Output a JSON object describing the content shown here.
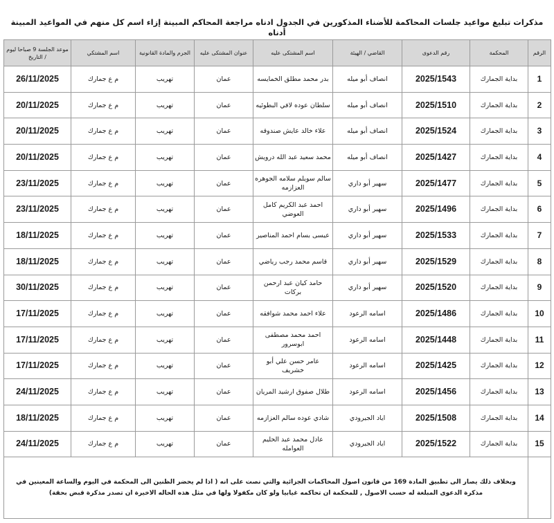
{
  "title": "مذكرات تبليغ مواعيد جلسات المحاكمة للأضناء المذكورين في الجدول ادناه مراجعة المحاكم المبينة إزاء اسم كل منهم في المواعيد المبينة أدناه",
  "headers": [
    "الرقم",
    "المحكمة",
    "رقم الدعوى",
    "القاضي / الهيئة",
    "اسم المشتكى عليه",
    "عنوان المشتكى عليه",
    "الجرم والمادة القانونية",
    "اسم المشتكي",
    "موعد الجلسة 9 صباحا ليوم / التاريخ"
  ],
  "rows": [
    {
      "n": "1",
      "court": "بداية الجمارك",
      "case": "2025/1543",
      "judge": "انصاف أبو ميله",
      "name": "بدر محمد مطلق الخمايسه",
      "addr": "عمان",
      "crime": "تهريب",
      "plaintiff": "م ع جمارك",
      "date": "26/11/2025"
    },
    {
      "n": "2",
      "court": "بداية الجمارك",
      "case": "2025/1510",
      "judge": "انصاف أبو ميله",
      "name": "سلطان عوده لافي البطوئيه",
      "addr": "عمان",
      "crime": "تهريب",
      "plaintiff": "م ع جمارك",
      "date": "20/11/2025"
    },
    {
      "n": "3",
      "court": "بداية الجمارك",
      "case": "2025/1524",
      "judge": "انصاف أبو ميله",
      "name": "علاء خالد عايش صندوقه",
      "addr": "عمان",
      "crime": "تهريب",
      "plaintiff": "م ع جمارك",
      "date": "20/11/2025"
    },
    {
      "n": "4",
      "court": "بداية الجمارك",
      "case": "2025/1427",
      "judge": "انصاف أبو ميله",
      "name": "محمد سعيد عبد الله درويش",
      "addr": "عمان",
      "crime": "تهريب",
      "plaintiff": "م ع جمارك",
      "date": "20/11/2025"
    },
    {
      "n": "5",
      "court": "بداية الجمارك",
      "case": "2025/1477",
      "judge": "سهير أبو داري",
      "name": "سالم سويلم سلامه الجوهره العزازمه",
      "addr": "عمان",
      "crime": "تهريب",
      "plaintiff": "م ع جمارك",
      "date": "23/11/2025"
    },
    {
      "n": "6",
      "court": "بداية الجمارك",
      "case": "2025/1496",
      "judge": "سهير أبو داري",
      "name": "احمد عبد الكريم كامل العوضي",
      "addr": "عمان",
      "crime": "تهريب",
      "plaintiff": "م ع جمارك",
      "date": "23/11/2025"
    },
    {
      "n": "7",
      "court": "بداية الجمارك",
      "case": "2025/1533",
      "judge": "سهير أبو داري",
      "name": "عيسى بسام احمد المناصير",
      "addr": "عمان",
      "crime": "تهريب",
      "plaintiff": "م ع جمارك",
      "date": "18/11/2025"
    },
    {
      "n": "8",
      "court": "بداية الجمارك",
      "case": "2025/1529",
      "judge": "سهير أبو داري",
      "name": "قاسم محمد رجب رياضي",
      "addr": "عمان",
      "crime": "تهريب",
      "plaintiff": "م ع جمارك",
      "date": "18/11/2025"
    },
    {
      "n": "9",
      "court": "بداية الجمارك",
      "case": "2025/1520",
      "judge": "سهير أبو داري",
      "name": "حامد كيان عبد ارحمن بركات",
      "addr": "عمان",
      "crime": "تهريب",
      "plaintiff": "م ع جمارك",
      "date": "30/11/2025"
    },
    {
      "n": "10",
      "court": "بداية الجمارك",
      "case": "2025/1486",
      "judge": "اسامه الرعود",
      "name": "علاء احمد محمد شوافقه",
      "addr": "عمان",
      "crime": "تهريب",
      "plaintiff": "م ع جمارك",
      "date": "17/11/2025"
    },
    {
      "n": "11",
      "court": "بداية الجمارك",
      "case": "2025/1448",
      "judge": "اسامه الرعود",
      "name": "احمد محمد مصطفى ابوسرور",
      "addr": "عمان",
      "crime": "تهريب",
      "plaintiff": "م ع جمارك",
      "date": "17/11/2025"
    },
    {
      "n": "12",
      "court": "بداية الجمارك",
      "case": "2025/1425",
      "judge": "اسامه الرعود",
      "name": "عامر حسن علي أبو خشريف",
      "addr": "عمان",
      "crime": "تهريب",
      "plaintiff": "م ع جمارك",
      "date": "17/11/2025"
    },
    {
      "n": "13",
      "court": "بداية الجمارك",
      "case": "2025/1456",
      "judge": "اسامه الرعود",
      "name": "طلال صفوق ارشيد المريان",
      "addr": "عمان",
      "crime": "تهريب",
      "plaintiff": "م ع جمارك",
      "date": "24/11/2025"
    },
    {
      "n": "14",
      "court": "بداية الجمارك",
      "case": "2025/1508",
      "judge": "اياد الجيرودي",
      "name": "شادي عوده سالم العزازمه",
      "addr": "عمان",
      "crime": "تهريب",
      "plaintiff": "م ع جمارك",
      "date": "18/11/2025"
    },
    {
      "n": "15",
      "court": "بداية الجمارك",
      "case": "2025/1522",
      "judge": "اياد الجيرودي",
      "name": "عادل محمد عبد الحليم العوامله",
      "addr": "عمان",
      "crime": "تهريب",
      "plaintiff": "م ع جمارك",
      "date": "24/11/2025"
    }
  ],
  "note": "وبخلاف ذلك يصار الى تطبيق المادة 169 من قانون اصول المحاكمات الجزائية والتي نصت على انه ( اذا لم يحضر الظنين الى المحكمة في اليوم والساعة المعينين في مذكرة الدعوى المبلغة له حسب الاصول , للمحكمة ان تحاكمه غيابيا ولو كان مكفولا ولها في مثل هذه الحاله الاخيرة ان تصدر مذكرة قبض بحقة)"
}
